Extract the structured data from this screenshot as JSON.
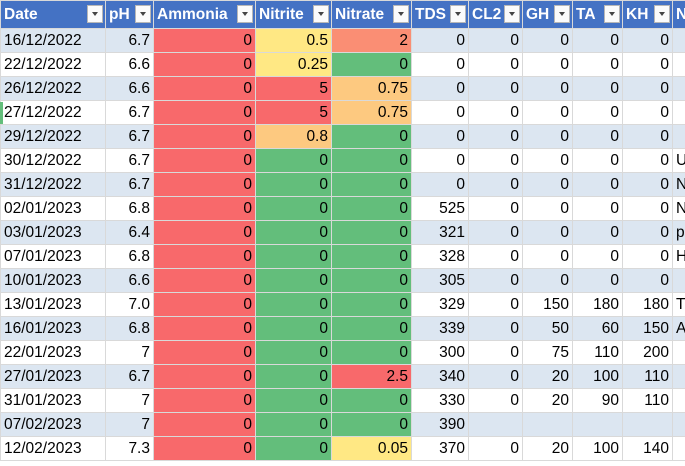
{
  "colors": {
    "header_bg": "#4472c4",
    "band_bg": "#dce6f1",
    "red": "#f8696b",
    "green": "#63be7b",
    "yellow": "#ffe884",
    "orange": "#fdc980",
    "orangered": "#fa8e74"
  },
  "columns": [
    {
      "key": "date",
      "label": "Date",
      "width": 105
    },
    {
      "key": "ph",
      "label": "pH",
      "width": 48
    },
    {
      "key": "ammonia",
      "label": "Ammonia",
      "width": 102
    },
    {
      "key": "nitrite",
      "label": "Nitrite",
      "width": 76
    },
    {
      "key": "nitrate",
      "label": "Nitrate",
      "width": 80
    },
    {
      "key": "tds",
      "label": "TDS",
      "width": 57
    },
    {
      "key": "cl2",
      "label": "CL2",
      "width": 54
    },
    {
      "key": "gh",
      "label": "GH",
      "width": 50
    },
    {
      "key": "ta",
      "label": "TA",
      "width": 50
    },
    {
      "key": "kh",
      "label": "KH",
      "width": 50
    },
    {
      "key": "notes",
      "label": "N",
      "width": 30
    }
  ],
  "rows": [
    {
      "date": "16/12/2022",
      "ph": "6.7",
      "ammonia": "0",
      "nitrite": "0.5",
      "nitrate": "2",
      "tds": "0",
      "cl2": "0",
      "gh": "0",
      "ta": "0",
      "kh": "0",
      "notes": ""
    },
    {
      "date": "22/12/2022",
      "ph": "6.6",
      "ammonia": "0",
      "nitrite": "0.25",
      "nitrate": "0",
      "tds": "0",
      "cl2": "0",
      "gh": "0",
      "ta": "0",
      "kh": "0",
      "notes": ""
    },
    {
      "date": "26/12/2022",
      "ph": "6.6",
      "ammonia": "0",
      "nitrite": "5",
      "nitrate": "0.75",
      "tds": "0",
      "cl2": "0",
      "gh": "0",
      "ta": "0",
      "kh": "0",
      "notes": ""
    },
    {
      "date": "27/12/2022",
      "ph": "6.7",
      "ammonia": "0",
      "nitrite": "5",
      "nitrate": "0.75",
      "tds": "0",
      "cl2": "0",
      "gh": "0",
      "ta": "0",
      "kh": "0",
      "notes": ""
    },
    {
      "date": "29/12/2022",
      "ph": "6.7",
      "ammonia": "0",
      "nitrite": "0.8",
      "nitrate": "0",
      "tds": "0",
      "cl2": "0",
      "gh": "0",
      "ta": "0",
      "kh": "0",
      "notes": ""
    },
    {
      "date": "30/12/2022",
      "ph": "6.7",
      "ammonia": "0",
      "nitrite": "0",
      "nitrate": "0",
      "tds": "0",
      "cl2": "0",
      "gh": "0",
      "ta": "0",
      "kh": "0",
      "notes": "U"
    },
    {
      "date": "31/12/2022",
      "ph": "6.7",
      "ammonia": "0",
      "nitrite": "0",
      "nitrate": "0",
      "tds": "0",
      "cl2": "0",
      "gh": "0",
      "ta": "0",
      "kh": "0",
      "notes": "N"
    },
    {
      "date": "02/01/2023",
      "ph": "6.8",
      "ammonia": "0",
      "nitrite": "0",
      "nitrate": "0",
      "tds": "525",
      "cl2": "0",
      "gh": "0",
      "ta": "0",
      "kh": "0",
      "notes": "N"
    },
    {
      "date": "03/01/2023",
      "ph": "6.4",
      "ammonia": "0",
      "nitrite": "0",
      "nitrate": "0",
      "tds": "321",
      "cl2": "0",
      "gh": "0",
      "ta": "0",
      "kh": "0",
      "notes": "p"
    },
    {
      "date": "07/01/2023",
      "ph": "6.8",
      "ammonia": "0",
      "nitrite": "0",
      "nitrate": "0",
      "tds": "328",
      "cl2": "0",
      "gh": "0",
      "ta": "0",
      "kh": "0",
      "notes": "H"
    },
    {
      "date": "10/01/2023",
      "ph": "6.6",
      "ammonia": "0",
      "nitrite": "0",
      "nitrate": "0",
      "tds": "305",
      "cl2": "0",
      "gh": "0",
      "ta": "0",
      "kh": "0",
      "notes": ""
    },
    {
      "date": "13/01/2023",
      "ph": "7.0",
      "ammonia": "0",
      "nitrite": "0",
      "nitrate": "0",
      "tds": "329",
      "cl2": "0",
      "gh": "150",
      "ta": "180",
      "kh": "180",
      "notes": "T"
    },
    {
      "date": "16/01/2023",
      "ph": "6.8",
      "ammonia": "0",
      "nitrite": "0",
      "nitrate": "0",
      "tds": "339",
      "cl2": "0",
      "gh": "50",
      "ta": "60",
      "kh": "150",
      "notes": "A"
    },
    {
      "date": "22/01/2023",
      "ph": "7",
      "ammonia": "0",
      "nitrite": "0",
      "nitrate": "0",
      "tds": "300",
      "cl2": "0",
      "gh": "75",
      "ta": "110",
      "kh": "200",
      "notes": ""
    },
    {
      "date": "27/01/2023",
      "ph": "6.7",
      "ammonia": "0",
      "nitrite": "0",
      "nitrate": "2.5",
      "tds": "340",
      "cl2": "0",
      "gh": "20",
      "ta": "100",
      "kh": "110",
      "notes": ""
    },
    {
      "date": "31/01/2023",
      "ph": "7",
      "ammonia": "0",
      "nitrite": "0",
      "nitrate": "0",
      "tds": "330",
      "cl2": "0",
      "gh": "20",
      "ta": "90",
      "kh": "110",
      "notes": ""
    },
    {
      "date": "07/02/2023",
      "ph": "7",
      "ammonia": "0",
      "nitrite": "0",
      "nitrate": "0",
      "tds": "390",
      "cl2": "",
      "gh": "",
      "ta": "",
      "kh": "",
      "notes": ""
    },
    {
      "date": "12/02/2023",
      "ph": "7.3",
      "ammonia": "0",
      "nitrite": "0",
      "nitrate": "0.05",
      "tds": "370",
      "cl2": "0",
      "gh": "20",
      "ta": "100",
      "kh": "140",
      "notes": ""
    }
  ],
  "cell_colors": {
    "ammonia": [
      "red",
      "red",
      "red",
      "red",
      "red",
      "red",
      "red",
      "red",
      "red",
      "red",
      "red",
      "red",
      "red",
      "red",
      "red",
      "red",
      "red",
      "red"
    ],
    "nitrite": [
      "yellow",
      "yellow",
      "red",
      "red",
      "orange",
      "green",
      "green",
      "green",
      "green",
      "green",
      "green",
      "green",
      "green",
      "green",
      "green",
      "green",
      "green",
      "green"
    ],
    "nitrate": [
      "orangered",
      "green",
      "orange",
      "orange",
      "green",
      "green",
      "green",
      "green",
      "green",
      "green",
      "green",
      "green",
      "green",
      "green",
      "red",
      "green",
      "green",
      "yellow"
    ]
  }
}
